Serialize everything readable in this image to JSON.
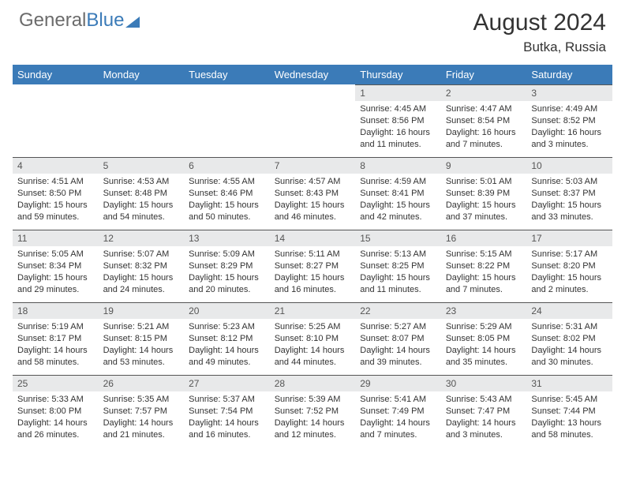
{
  "brand": {
    "part1": "General",
    "part2": "Blue"
  },
  "title": "August 2024",
  "location": "Butka, Russia",
  "colors": {
    "accent": "#3b7bb8",
    "dayHeaderBg": "#e8e9ea",
    "text": "#333333"
  },
  "dayNames": [
    "Sunday",
    "Monday",
    "Tuesday",
    "Wednesday",
    "Thursday",
    "Friday",
    "Saturday"
  ],
  "weeks": [
    [
      {
        "empty": true
      },
      {
        "empty": true
      },
      {
        "empty": true
      },
      {
        "empty": true
      },
      {
        "n": "1",
        "sunrise": "4:45 AM",
        "sunset": "8:56 PM",
        "daylight": "16 hours and 11 minutes."
      },
      {
        "n": "2",
        "sunrise": "4:47 AM",
        "sunset": "8:54 PM",
        "daylight": "16 hours and 7 minutes."
      },
      {
        "n": "3",
        "sunrise": "4:49 AM",
        "sunset": "8:52 PM",
        "daylight": "16 hours and 3 minutes."
      }
    ],
    [
      {
        "n": "4",
        "sunrise": "4:51 AM",
        "sunset": "8:50 PM",
        "daylight": "15 hours and 59 minutes."
      },
      {
        "n": "5",
        "sunrise": "4:53 AM",
        "sunset": "8:48 PM",
        "daylight": "15 hours and 54 minutes."
      },
      {
        "n": "6",
        "sunrise": "4:55 AM",
        "sunset": "8:46 PM",
        "daylight": "15 hours and 50 minutes."
      },
      {
        "n": "7",
        "sunrise": "4:57 AM",
        "sunset": "8:43 PM",
        "daylight": "15 hours and 46 minutes."
      },
      {
        "n": "8",
        "sunrise": "4:59 AM",
        "sunset": "8:41 PM",
        "daylight": "15 hours and 42 minutes."
      },
      {
        "n": "9",
        "sunrise": "5:01 AM",
        "sunset": "8:39 PM",
        "daylight": "15 hours and 37 minutes."
      },
      {
        "n": "10",
        "sunrise": "5:03 AM",
        "sunset": "8:37 PM",
        "daylight": "15 hours and 33 minutes."
      }
    ],
    [
      {
        "n": "11",
        "sunrise": "5:05 AM",
        "sunset": "8:34 PM",
        "daylight": "15 hours and 29 minutes."
      },
      {
        "n": "12",
        "sunrise": "5:07 AM",
        "sunset": "8:32 PM",
        "daylight": "15 hours and 24 minutes."
      },
      {
        "n": "13",
        "sunrise": "5:09 AM",
        "sunset": "8:29 PM",
        "daylight": "15 hours and 20 minutes."
      },
      {
        "n": "14",
        "sunrise": "5:11 AM",
        "sunset": "8:27 PM",
        "daylight": "15 hours and 16 minutes."
      },
      {
        "n": "15",
        "sunrise": "5:13 AM",
        "sunset": "8:25 PM",
        "daylight": "15 hours and 11 minutes."
      },
      {
        "n": "16",
        "sunrise": "5:15 AM",
        "sunset": "8:22 PM",
        "daylight": "15 hours and 7 minutes."
      },
      {
        "n": "17",
        "sunrise": "5:17 AM",
        "sunset": "8:20 PM",
        "daylight": "15 hours and 2 minutes."
      }
    ],
    [
      {
        "n": "18",
        "sunrise": "5:19 AM",
        "sunset": "8:17 PM",
        "daylight": "14 hours and 58 minutes."
      },
      {
        "n": "19",
        "sunrise": "5:21 AM",
        "sunset": "8:15 PM",
        "daylight": "14 hours and 53 minutes."
      },
      {
        "n": "20",
        "sunrise": "5:23 AM",
        "sunset": "8:12 PM",
        "daylight": "14 hours and 49 minutes."
      },
      {
        "n": "21",
        "sunrise": "5:25 AM",
        "sunset": "8:10 PM",
        "daylight": "14 hours and 44 minutes."
      },
      {
        "n": "22",
        "sunrise": "5:27 AM",
        "sunset": "8:07 PM",
        "daylight": "14 hours and 39 minutes."
      },
      {
        "n": "23",
        "sunrise": "5:29 AM",
        "sunset": "8:05 PM",
        "daylight": "14 hours and 35 minutes."
      },
      {
        "n": "24",
        "sunrise": "5:31 AM",
        "sunset": "8:02 PM",
        "daylight": "14 hours and 30 minutes."
      }
    ],
    [
      {
        "n": "25",
        "sunrise": "5:33 AM",
        "sunset": "8:00 PM",
        "daylight": "14 hours and 26 minutes."
      },
      {
        "n": "26",
        "sunrise": "5:35 AM",
        "sunset": "7:57 PM",
        "daylight": "14 hours and 21 minutes."
      },
      {
        "n": "27",
        "sunrise": "5:37 AM",
        "sunset": "7:54 PM",
        "daylight": "14 hours and 16 minutes."
      },
      {
        "n": "28",
        "sunrise": "5:39 AM",
        "sunset": "7:52 PM",
        "daylight": "14 hours and 12 minutes."
      },
      {
        "n": "29",
        "sunrise": "5:41 AM",
        "sunset": "7:49 PM",
        "daylight": "14 hours and 7 minutes."
      },
      {
        "n": "30",
        "sunrise": "5:43 AM",
        "sunset": "7:47 PM",
        "daylight": "14 hours and 3 minutes."
      },
      {
        "n": "31",
        "sunrise": "5:45 AM",
        "sunset": "7:44 PM",
        "daylight": "13 hours and 58 minutes."
      }
    ]
  ]
}
